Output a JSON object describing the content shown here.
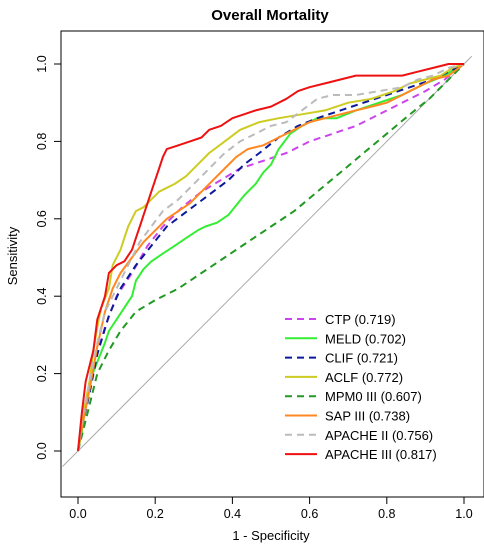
{
  "chart_data": {
    "type": "line",
    "title": "Overall Mortality",
    "xlabel": "1 - Specificity",
    "ylabel": "Sensitivity",
    "xlim": [
      0,
      1
    ],
    "ylim": [
      0,
      1
    ],
    "xticks": [
      "0.0",
      "0.2",
      "0.4",
      "0.6",
      "0.8",
      "1.0"
    ],
    "yticks": [
      "0.0",
      "0.2",
      "0.4",
      "0.6",
      "0.8",
      "1.0"
    ],
    "grid": false,
    "legend_position": "bottom-right",
    "reference_line": {
      "from": [
        0,
        0
      ],
      "to": [
        1,
        1
      ],
      "color": "#aaaaaa"
    },
    "series": [
      {
        "name": "CTP (0.719)",
        "color": "#cc44ee",
        "dash": true,
        "points": [
          [
            0,
            0
          ],
          [
            0.01,
            0.05
          ],
          [
            0.02,
            0.12
          ],
          [
            0.04,
            0.22
          ],
          [
            0.07,
            0.32
          ],
          [
            0.1,
            0.4
          ],
          [
            0.14,
            0.46
          ],
          [
            0.18,
            0.53
          ],
          [
            0.22,
            0.58
          ],
          [
            0.27,
            0.63
          ],
          [
            0.32,
            0.67
          ],
          [
            0.37,
            0.7
          ],
          [
            0.42,
            0.73
          ],
          [
            0.48,
            0.75
          ],
          [
            0.54,
            0.77
          ],
          [
            0.6,
            0.8
          ],
          [
            0.66,
            0.82
          ],
          [
            0.72,
            0.84
          ],
          [
            0.78,
            0.87
          ],
          [
            0.84,
            0.9
          ],
          [
            0.9,
            0.93
          ],
          [
            0.95,
            0.96
          ],
          [
            1,
            1
          ]
        ]
      },
      {
        "name": "MELD (0.702)",
        "color": "#33ee33",
        "dash": false,
        "points": [
          [
            0,
            0
          ],
          [
            0.01,
            0.05
          ],
          [
            0.02,
            0.12
          ],
          [
            0.03,
            0.18
          ],
          [
            0.05,
            0.23
          ],
          [
            0.07,
            0.28
          ],
          [
            0.08,
            0.31
          ],
          [
            0.1,
            0.34
          ],
          [
            0.12,
            0.37
          ],
          [
            0.14,
            0.4
          ],
          [
            0.15,
            0.44
          ],
          [
            0.17,
            0.47
          ],
          [
            0.19,
            0.49
          ],
          [
            0.22,
            0.51
          ],
          [
            0.25,
            0.53
          ],
          [
            0.28,
            0.55
          ],
          [
            0.31,
            0.57
          ],
          [
            0.33,
            0.58
          ],
          [
            0.36,
            0.59
          ],
          [
            0.39,
            0.61
          ],
          [
            0.43,
            0.66
          ],
          [
            0.46,
            0.69
          ],
          [
            0.48,
            0.72
          ],
          [
            0.5,
            0.74
          ],
          [
            0.52,
            0.78
          ],
          [
            0.55,
            0.82
          ],
          [
            0.58,
            0.84
          ],
          [
            0.62,
            0.86
          ],
          [
            0.67,
            0.86
          ],
          [
            0.72,
            0.88
          ],
          [
            0.78,
            0.9
          ],
          [
            0.84,
            0.92
          ],
          [
            0.9,
            0.95
          ],
          [
            0.95,
            0.97
          ],
          [
            0.98,
            0.99
          ],
          [
            1,
            1
          ]
        ]
      },
      {
        "name": "CLIF (0.721)",
        "color": "#0a1a99",
        "dash": true,
        "points": [
          [
            0,
            0
          ],
          [
            0.01,
            0.06
          ],
          [
            0.03,
            0.15
          ],
          [
            0.05,
            0.25
          ],
          [
            0.08,
            0.35
          ],
          [
            0.11,
            0.42
          ],
          [
            0.15,
            0.48
          ],
          [
            0.19,
            0.53
          ],
          [
            0.23,
            0.58
          ],
          [
            0.27,
            0.61
          ],
          [
            0.31,
            0.64
          ],
          [
            0.35,
            0.67
          ],
          [
            0.39,
            0.7
          ],
          [
            0.43,
            0.74
          ],
          [
            0.47,
            0.77
          ],
          [
            0.52,
            0.81
          ],
          [
            0.57,
            0.84
          ],
          [
            0.62,
            0.86
          ],
          [
            0.68,
            0.88
          ],
          [
            0.74,
            0.9
          ],
          [
            0.8,
            0.92
          ],
          [
            0.86,
            0.94
          ],
          [
            0.92,
            0.96
          ],
          [
            0.96,
            0.98
          ],
          [
            1,
            1
          ]
        ]
      },
      {
        "name": "ACLF (0.772)",
        "color": "#cccc22",
        "dash": false,
        "points": [
          [
            0,
            0
          ],
          [
            0.01,
            0.08
          ],
          [
            0.03,
            0.18
          ],
          [
            0.04,
            0.26
          ],
          [
            0.05,
            0.32
          ],
          [
            0.06,
            0.37
          ],
          [
            0.08,
            0.42
          ],
          [
            0.09,
            0.48
          ],
          [
            0.11,
            0.52
          ],
          [
            0.12,
            0.55
          ],
          [
            0.13,
            0.58
          ],
          [
            0.14,
            0.6
          ],
          [
            0.15,
            0.62
          ],
          [
            0.17,
            0.63
          ],
          [
            0.19,
            0.65
          ],
          [
            0.21,
            0.67
          ],
          [
            0.23,
            0.68
          ],
          [
            0.25,
            0.69
          ],
          [
            0.28,
            0.71
          ],
          [
            0.31,
            0.74
          ],
          [
            0.34,
            0.77
          ],
          [
            0.38,
            0.8
          ],
          [
            0.42,
            0.83
          ],
          [
            0.47,
            0.85
          ],
          [
            0.52,
            0.86
          ],
          [
            0.58,
            0.87
          ],
          [
            0.64,
            0.88
          ],
          [
            0.7,
            0.9
          ],
          [
            0.76,
            0.91
          ],
          [
            0.82,
            0.93
          ],
          [
            0.86,
            0.95
          ],
          [
            0.9,
            0.96
          ],
          [
            0.94,
            0.97
          ],
          [
            0.97,
            0.99
          ],
          [
            1,
            1
          ]
        ]
      },
      {
        "name": "MPM0 III (0.607)",
        "color": "#229922",
        "dash": true,
        "points": [
          [
            0,
            0
          ],
          [
            0.01,
            0.04
          ],
          [
            0.03,
            0.12
          ],
          [
            0.05,
            0.2
          ],
          [
            0.08,
            0.26
          ],
          [
            0.11,
            0.31
          ],
          [
            0.15,
            0.36
          ],
          [
            0.2,
            0.39
          ],
          [
            0.26,
            0.42
          ],
          [
            0.32,
            0.46
          ],
          [
            0.38,
            0.5
          ],
          [
            0.44,
            0.54
          ],
          [
            0.5,
            0.58
          ],
          [
            0.56,
            0.62
          ],
          [
            0.62,
            0.67
          ],
          [
            0.68,
            0.72
          ],
          [
            0.74,
            0.77
          ],
          [
            0.8,
            0.82
          ],
          [
            0.86,
            0.87
          ],
          [
            0.91,
            0.91
          ],
          [
            0.95,
            0.95
          ],
          [
            1,
            1
          ]
        ]
      },
      {
        "name": "SAP III (0.738)",
        "color": "#ff8822",
        "dash": false,
        "points": [
          [
            0,
            0
          ],
          [
            0.01,
            0.06
          ],
          [
            0.03,
            0.16
          ],
          [
            0.05,
            0.27
          ],
          [
            0.07,
            0.36
          ],
          [
            0.09,
            0.42
          ],
          [
            0.11,
            0.46
          ],
          [
            0.14,
            0.5
          ],
          [
            0.17,
            0.54
          ],
          [
            0.2,
            0.57
          ],
          [
            0.23,
            0.6
          ],
          [
            0.26,
            0.62
          ],
          [
            0.29,
            0.64
          ],
          [
            0.32,
            0.67
          ],
          [
            0.35,
            0.7
          ],
          [
            0.38,
            0.73
          ],
          [
            0.41,
            0.76
          ],
          [
            0.44,
            0.78
          ],
          [
            0.48,
            0.79
          ],
          [
            0.52,
            0.81
          ],
          [
            0.56,
            0.83
          ],
          [
            0.6,
            0.85
          ],
          [
            0.64,
            0.86
          ],
          [
            0.68,
            0.87
          ],
          [
            0.72,
            0.88
          ],
          [
            0.76,
            0.89
          ],
          [
            0.8,
            0.9
          ],
          [
            0.84,
            0.92
          ],
          [
            0.88,
            0.94
          ],
          [
            0.92,
            0.96
          ],
          [
            0.96,
            0.97
          ],
          [
            1,
            1
          ]
        ]
      },
      {
        "name": "APACHE II (0.756)",
        "color": "#bbbbbb",
        "dash": true,
        "points": [
          [
            0,
            0
          ],
          [
            0.01,
            0.08
          ],
          [
            0.03,
            0.18
          ],
          [
            0.05,
            0.28
          ],
          [
            0.07,
            0.36
          ],
          [
            0.1,
            0.42
          ],
          [
            0.13,
            0.48
          ],
          [
            0.16,
            0.54
          ],
          [
            0.19,
            0.58
          ],
          [
            0.22,
            0.62
          ],
          [
            0.26,
            0.65
          ],
          [
            0.3,
            0.69
          ],
          [
            0.34,
            0.73
          ],
          [
            0.38,
            0.77
          ],
          [
            0.42,
            0.8
          ],
          [
            0.46,
            0.82
          ],
          [
            0.5,
            0.84
          ],
          [
            0.54,
            0.85
          ],
          [
            0.58,
            0.88
          ],
          [
            0.62,
            0.91
          ],
          [
            0.66,
            0.92
          ],
          [
            0.72,
            0.92
          ],
          [
            0.78,
            0.93
          ],
          [
            0.84,
            0.94
          ],
          [
            0.88,
            0.96
          ],
          [
            0.92,
            0.97
          ],
          [
            0.96,
            0.99
          ],
          [
            1,
            1
          ]
        ]
      },
      {
        "name": "APACHE III (0.817)",
        "color": "#ee1111",
        "dash": false,
        "points": [
          [
            0,
            0
          ],
          [
            0.01,
            0.1
          ],
          [
            0.02,
            0.18
          ],
          [
            0.04,
            0.26
          ],
          [
            0.05,
            0.34
          ],
          [
            0.07,
            0.4
          ],
          [
            0.08,
            0.46
          ],
          [
            0.1,
            0.48
          ],
          [
            0.12,
            0.49
          ],
          [
            0.14,
            0.52
          ],
          [
            0.15,
            0.55
          ],
          [
            0.16,
            0.58
          ],
          [
            0.17,
            0.61
          ],
          [
            0.18,
            0.64
          ],
          [
            0.19,
            0.67
          ],
          [
            0.2,
            0.7
          ],
          [
            0.21,
            0.73
          ],
          [
            0.22,
            0.76
          ],
          [
            0.23,
            0.78
          ],
          [
            0.26,
            0.79
          ],
          [
            0.29,
            0.8
          ],
          [
            0.32,
            0.81
          ],
          [
            0.34,
            0.83
          ],
          [
            0.37,
            0.84
          ],
          [
            0.4,
            0.86
          ],
          [
            0.43,
            0.87
          ],
          [
            0.46,
            0.88
          ],
          [
            0.5,
            0.89
          ],
          [
            0.54,
            0.91
          ],
          [
            0.57,
            0.93
          ],
          [
            0.6,
            0.94
          ],
          [
            0.64,
            0.95
          ],
          [
            0.68,
            0.96
          ],
          [
            0.72,
            0.97
          ],
          [
            0.78,
            0.97
          ],
          [
            0.84,
            0.97
          ],
          [
            0.88,
            0.98
          ],
          [
            0.92,
            0.99
          ],
          [
            0.96,
            1.0
          ],
          [
            1,
            1
          ]
        ]
      }
    ]
  }
}
